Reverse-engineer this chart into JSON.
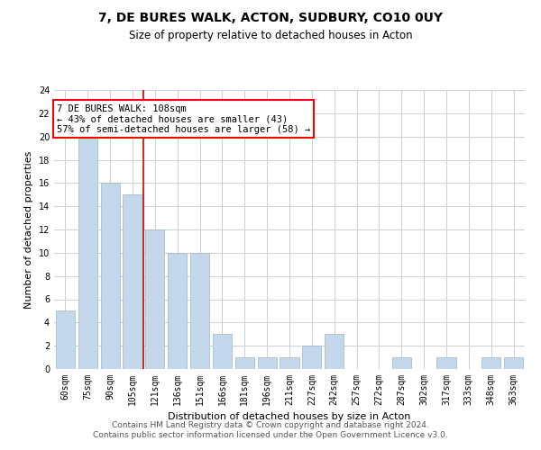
{
  "title1": "7, DE BURES WALK, ACTON, SUDBURY, CO10 0UY",
  "title2": "Size of property relative to detached houses in Acton",
  "xlabel": "Distribution of detached houses by size in Acton",
  "ylabel": "Number of detached properties",
  "categories": [
    "60sqm",
    "75sqm",
    "90sqm",
    "105sqm",
    "121sqm",
    "136sqm",
    "151sqm",
    "166sqm",
    "181sqm",
    "196sqm",
    "211sqm",
    "227sqm",
    "242sqm",
    "257sqm",
    "272sqm",
    "287sqm",
    "302sqm",
    "317sqm",
    "333sqm",
    "348sqm",
    "363sqm"
  ],
  "values": [
    5,
    20,
    16,
    15,
    12,
    10,
    10,
    3,
    1,
    1,
    1,
    2,
    3,
    0,
    0,
    1,
    0,
    1,
    0,
    1,
    1
  ],
  "bar_color": "#c5d8eb",
  "bar_edge_color": "#9ab5cc",
  "bar_width": 0.85,
  "vline_x": 3.5,
  "vline_color": "#cc0000",
  "annotation_text": "7 DE BURES WALK: 108sqm\n← 43% of detached houses are smaller (43)\n57% of semi-detached houses are larger (58) →",
  "annotation_fontsize": 7.5,
  "ylim": [
    0,
    24
  ],
  "yticks": [
    0,
    2,
    4,
    6,
    8,
    10,
    12,
    14,
    16,
    18,
    20,
    22,
    24
  ],
  "footer_text": "Contains HM Land Registry data © Crown copyright and database right 2024.\nContains public sector information licensed under the Open Government Licence v3.0.",
  "background_color": "#ffffff",
  "grid_color": "#c8d0d8",
  "title1_fontsize": 10,
  "title2_fontsize": 8.5,
  "xlabel_fontsize": 8,
  "ylabel_fontsize": 8,
  "tick_fontsize": 7,
  "footer_fontsize": 6.5
}
